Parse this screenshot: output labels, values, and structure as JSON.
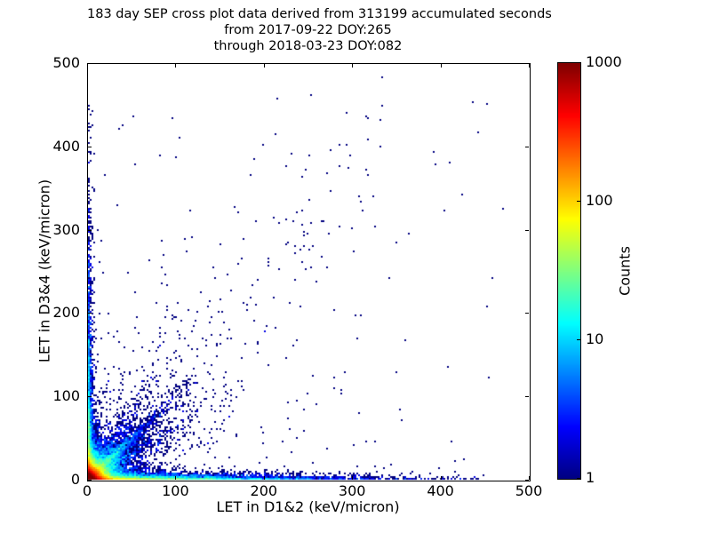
{
  "figure": {
    "title_lines": [
      "183 day SEP cross plot data derived from 313199 accumulated seconds",
      "from 2017-09-22 DOY:265",
      "through 2018-03-23 DOY:082"
    ]
  },
  "chart_data": {
    "type": "heatmap",
    "title": "183 day SEP cross plot data derived from 313199 accumulated seconds from 2017-09-22 DOY:265 through 2018-03-23 DOY:082",
    "xlabel": "LET in D1&2 (keV/micron)",
    "ylabel": "LET in D3&4 (keV/micron)",
    "xlim": [
      0,
      500
    ],
    "ylim": [
      0,
      500
    ],
    "x_ticks": [
      0,
      100,
      200,
      300,
      400,
      500
    ],
    "y_ticks": [
      0,
      100,
      200,
      300,
      400,
      500
    ],
    "grid": false,
    "colorbar": {
      "label": "Counts",
      "scale": "log",
      "min": 1,
      "max": 1000,
      "ticks": [
        1,
        10,
        100,
        1000
      ],
      "colormap": "jet",
      "min_color": "#000080",
      "max_color": "#800000"
    },
    "point_color_single_count": "#00008f",
    "bin_size_px": 2,
    "seed": 20170922,
    "description": "2D histogram cross plot: intense hot cluster at origin peaking near 1000 counts (red core, yellow-green ring, cyan then blue halo), dense count bands hugging both axes (along x to ~450 keV/micron, along y to ~450), a prominent diagonal streak of slope ~1 from the origin out to ~150 keV/micron with fainter streaks near slopes 0.6 and 1.6, a broad sparse fan between the axes, and isolated single-count points trending diagonally up to ~(330,460).",
    "components": [
      {
        "name": "origin-core",
        "type": "exp2d",
        "n": 30000,
        "sx": 5,
        "sy": 5
      },
      {
        "name": "origin-halo",
        "type": "exp2d",
        "n": 6000,
        "sx": 14,
        "sy": 14
      },
      {
        "name": "x-axis-band",
        "type": "exp2d",
        "n": 6500,
        "sx": 85,
        "sy": 2.4,
        "xmax": 455
      },
      {
        "name": "y-axis-band",
        "type": "exp2d",
        "n": 2800,
        "sx": 1.9,
        "sy": 78,
        "ymax": 450
      },
      {
        "name": "diag-streak-45",
        "type": "ray",
        "n": 1900,
        "angle": 45,
        "aspread": 2.5,
        "rscale": 38,
        "rmax": 175,
        "jitter": 2
      },
      {
        "name": "diag-streak-32",
        "type": "ray",
        "n": 900,
        "angle": 32,
        "aspread": 4,
        "rscale": 45,
        "rmax": 200,
        "jitter": 2
      },
      {
        "name": "diag-streak-58",
        "type": "ray",
        "n": 650,
        "angle": 58,
        "aspread": 4,
        "rscale": 33,
        "rmax": 150,
        "jitter": 2
      },
      {
        "name": "fan-scatter",
        "type": "ray",
        "n": 1600,
        "angle": 45,
        "aspread": 22,
        "rscale": 60,
        "rmax": 420,
        "jitter": 0
      },
      {
        "name": "sparse-diagonal",
        "type": "line",
        "n": 120,
        "xmin": 60,
        "xmax": 335,
        "slope": 1.25,
        "noise": 55
      },
      {
        "name": "uniform-sparse",
        "type": "uniform",
        "n": 90,
        "xmin": 5,
        "xmax": 470,
        "ymin": 5,
        "ymax": 470
      }
    ]
  }
}
